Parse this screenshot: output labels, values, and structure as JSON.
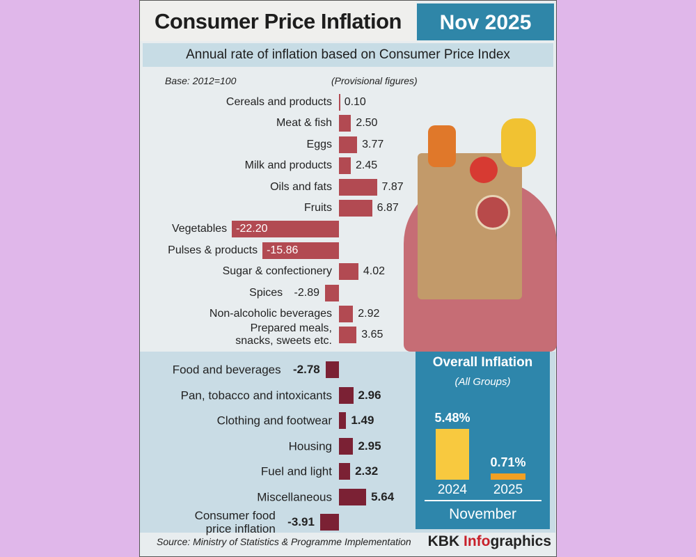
{
  "title": "Consumer Price Inflation",
  "date": "Nov 2025",
  "subtitle": "Annual rate of inflation based on Consumer Price Index",
  "base_note": "Base: 2012=100",
  "provisional_note": "(Provisional figures)",
  "source": "Source: Ministry of Statistics & Programme Implementation",
  "brand": [
    "KBK",
    "Info",
    "graphics"
  ],
  "chart_data": [
    {
      "type": "hbar",
      "color": "#b24a52",
      "categories": [
        "Cereals and products",
        "Meat & fish",
        "Eggs",
        "Milk and products",
        "Oils and fats",
        "Fruits",
        "Vegetables",
        "Pulses & products",
        "Sugar & confectionery",
        "Spices",
        "Non-alcoholic beverages",
        "Prepared meals,\nsnacks, sweets etc."
      ],
      "values": [
        0.1,
        2.5,
        3.77,
        2.45,
        7.87,
        6.87,
        -22.2,
        -15.86,
        4.02,
        -2.89,
        2.92,
        3.65
      ],
      "value_labels": [
        "0.10",
        "2.50",
        "3.77",
        "2.45",
        "7.87",
        "6.87",
        "-22.20",
        "-15.86",
        "4.02",
        "-2.89",
        "2.92",
        "3.65"
      ]
    },
    {
      "type": "hbar",
      "color": "#7b2134",
      "categories": [
        "Food and beverages",
        "Pan, tobacco and intoxicants",
        "Clothing and footwear",
        "Housing",
        "Fuel and light",
        "Miscellaneous",
        "Consumer food\nprice inflation"
      ],
      "values": [
        -2.78,
        2.96,
        1.49,
        2.95,
        2.32,
        5.64,
        -3.91
      ]
    },
    {
      "type": "bar",
      "title": "Overall Inflation",
      "subtitle": "(All Groups)",
      "xlabel": "November",
      "categories": [
        "2024",
        "2025"
      ],
      "values": [
        5.48,
        0.71
      ],
      "value_labels": [
        "5.48%",
        "0.71%"
      ],
      "colors": [
        "#f8c93f",
        "#f2a023"
      ]
    }
  ]
}
